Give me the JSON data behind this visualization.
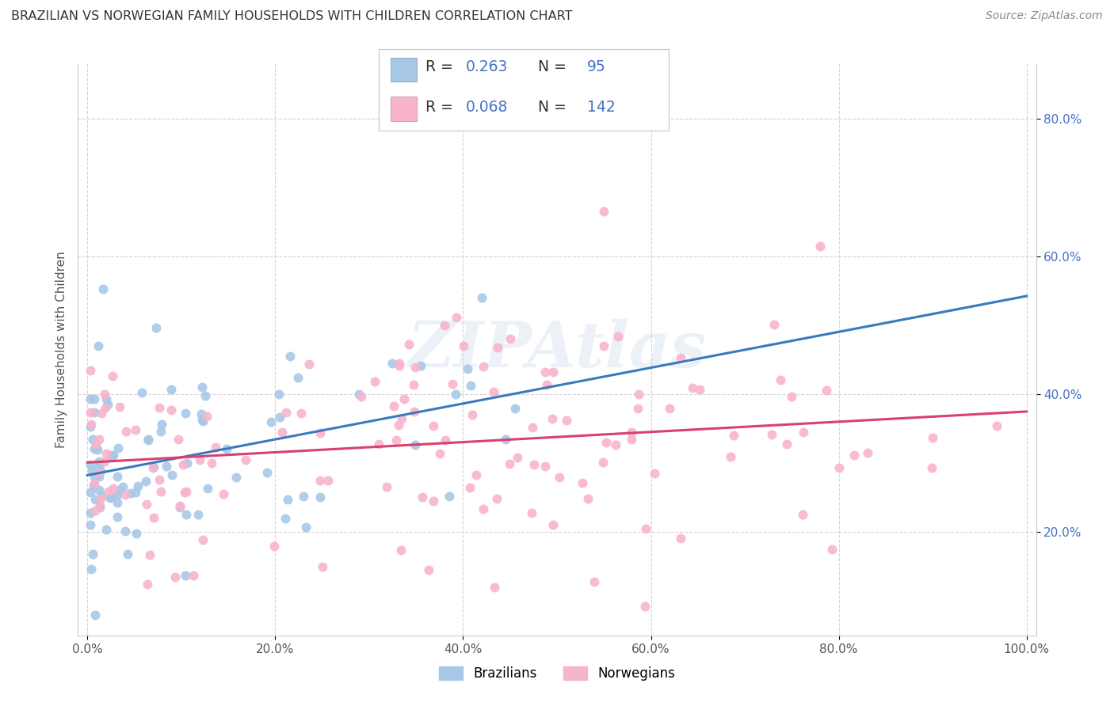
{
  "title": "BRAZILIAN VS NORWEGIAN FAMILY HOUSEHOLDS WITH CHILDREN CORRELATION CHART",
  "source": "Source: ZipAtlas.com",
  "ylabel": "Family Households with Children",
  "legend_labels": [
    "Brazilians",
    "Norwegians"
  ],
  "R_brazilian": 0.263,
  "N_brazilian": 95,
  "R_norwegian": 0.068,
  "N_norwegian": 142,
  "color_brazilian": "#a8c8e8",
  "color_norwegian": "#f8b4cc",
  "color_trend_brazilian": "#3a7abf",
  "color_trend_norwegian": "#d94070",
  "color_trend_dashed": "#aaaaaa",
  "xlim": [
    -0.01,
    1.01
  ],
  "ylim": [
    0.05,
    0.88
  ],
  "xticks": [
    0.0,
    0.2,
    0.4,
    0.6,
    0.8,
    1.0
  ],
  "yticks": [
    0.2,
    0.4,
    0.6,
    0.8
  ],
  "background_color": "#ffffff",
  "grid_color": "#d0d0d0",
  "watermark": "ZIPAtlas",
  "seed": 42,
  "N_braz": 95,
  "N_norw": 142
}
